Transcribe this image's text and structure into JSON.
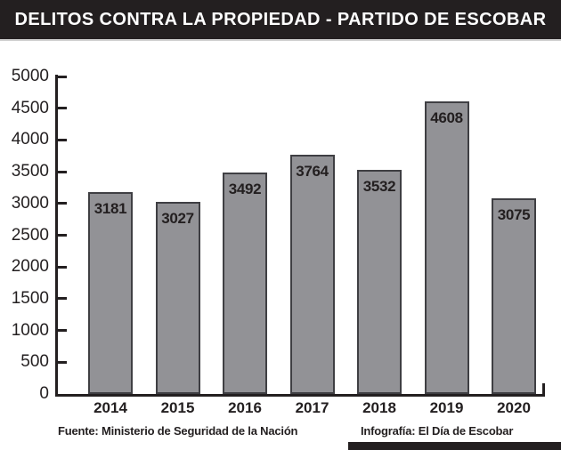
{
  "header": {
    "title": "DELITOS CONTRA LA PROPIEDAD - PARTIDO DE ESCOBAR"
  },
  "footer": {
    "source": "Fuente: Ministerio de Seguridad de la Nación",
    "credit": "Infografía: El Día de Escobar"
  },
  "colors": {
    "header_bg": "#231f20",
    "header_text": "#ffffff",
    "bar_fill": "#929296",
    "bar_border": "#3f3f43",
    "axis": "#231f20",
    "text": "#231f20",
    "background": "#ffffff"
  },
  "chart_data": {
    "type": "bar",
    "title": "DELITOS CONTRA LA PROPIEDAD - PARTIDO DE ESCOBAR",
    "categories": [
      "2014",
      "2015",
      "2016",
      "2017",
      "2018",
      "2019",
      "2020"
    ],
    "values": [
      3181,
      3027,
      3492,
      3764,
      3532,
      4608,
      3075
    ],
    "bar_labels": [
      3181,
      3027,
      3492,
      3764,
      3532,
      4608,
      3075
    ],
    "xlabel": "",
    "ylabel": "",
    "ylim": [
      0,
      5000
    ],
    "yticks": [
      0,
      500,
      1000,
      1500,
      2000,
      2500,
      3000,
      3500,
      4000,
      4500,
      5000
    ],
    "grid": false,
    "legend": false,
    "value_labels_inside_bars": true
  }
}
